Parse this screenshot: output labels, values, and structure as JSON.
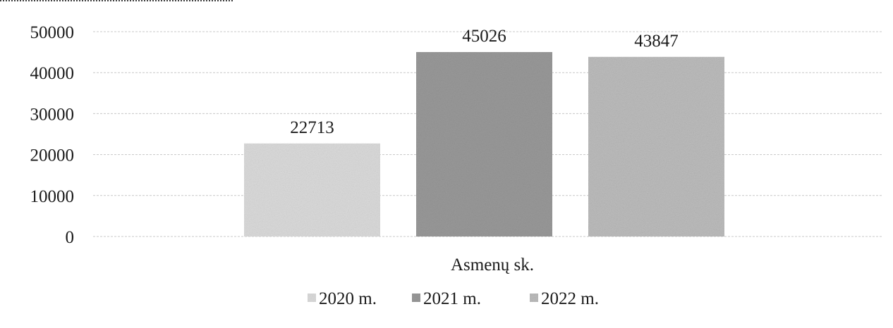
{
  "chart_data": {
    "type": "bar",
    "categories": [
      "Asmenų sk."
    ],
    "series": [
      {
        "name": "2020 m.",
        "values": [
          22713
        ],
        "color": "#dcdcdc"
      },
      {
        "name": "2021 m.",
        "values": [
          45026
        ],
        "color": "#9a9a9a"
      },
      {
        "name": "2022 m.",
        "values": [
          43847
        ],
        "color": "#bdbdbd"
      }
    ],
    "xlabel": "Asmenų sk.",
    "ylabel": "",
    "ylim": [
      0,
      50000
    ],
    "yticks": [
      0,
      10000,
      20000,
      30000,
      40000,
      50000
    ],
    "grid": true,
    "legend": "bottom"
  }
}
